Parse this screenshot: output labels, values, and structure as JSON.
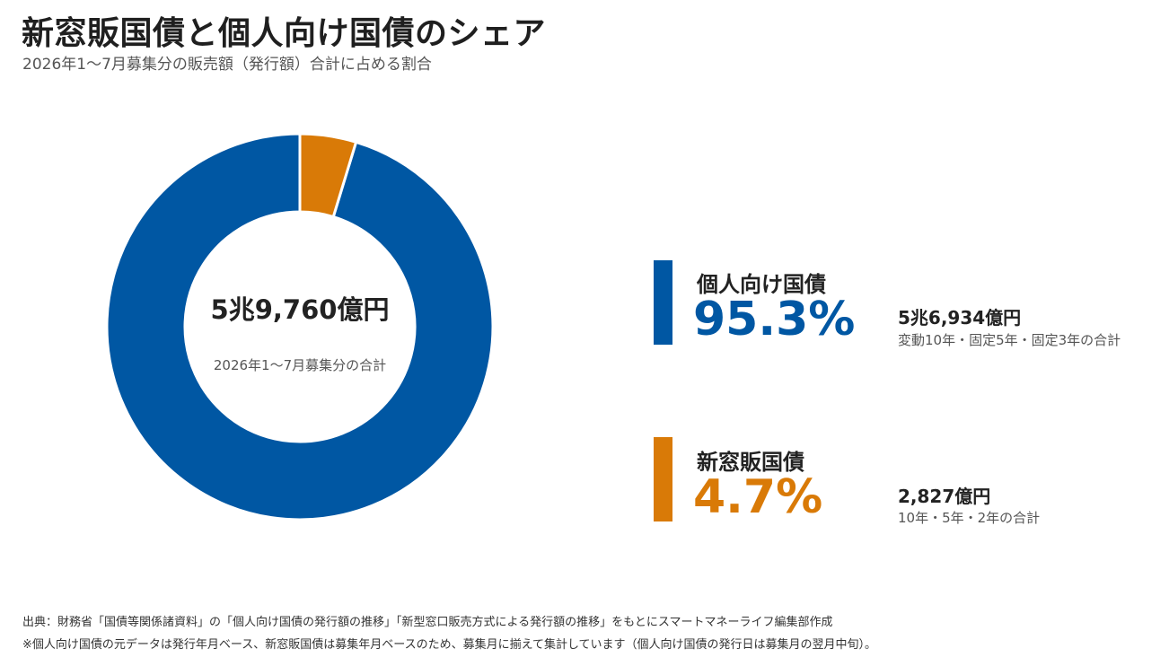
{
  "title": "新窓販国債と個人向け国債のシェア",
  "subtitle": "2026年1〜7月募集分の販売額（発行額）合計に占める割合",
  "center": {
    "total": "5兆9,760億円",
    "note": "2026年1〜7月募集分の合計"
  },
  "legend": [
    {
      "name": "個人向け国債",
      "percent": "95.3%",
      "amount": "5兆6,934億円",
      "detail": "変動10年・固定5年・固定3年の合計",
      "color": "#0057A3"
    },
    {
      "name": "新窓販国債",
      "percent": "4.7%",
      "amount": "2,827億円",
      "detail": "10年・5年・2年の合計",
      "color": "#D97A07"
    }
  ],
  "footnotes": [
    "出典：財務省「国債等関係諸資料」の「個人向け国債の発行額の推移」「新型窓口販売方式による発行額の推移」をもとにスマートマネーライフ編集部作成",
    "※個人向け国債の元データは発行年月ベース、新窓販国債は募集年月ベースのため、募集月に揃えて集計しています（個人向け国債の発行日は募集月の翌月中旬）。"
  ],
  "chart_data": {
    "type": "pie",
    "categories": [
      "個人向け国債",
      "新窓販国債"
    ],
    "values": [
      95.3,
      4.7
    ],
    "amounts_oku_yen": [
      56934,
      2827
    ],
    "colors": [
      "#0057A3",
      "#D97A07"
    ],
    "start": "12 o'clock",
    "direction": "counterclockwise",
    "title": "新窓販国債と個人向け国債のシェア",
    "subtitle": "2026年1〜7月募集分の販売額（発行額）合計に占める割合"
  }
}
